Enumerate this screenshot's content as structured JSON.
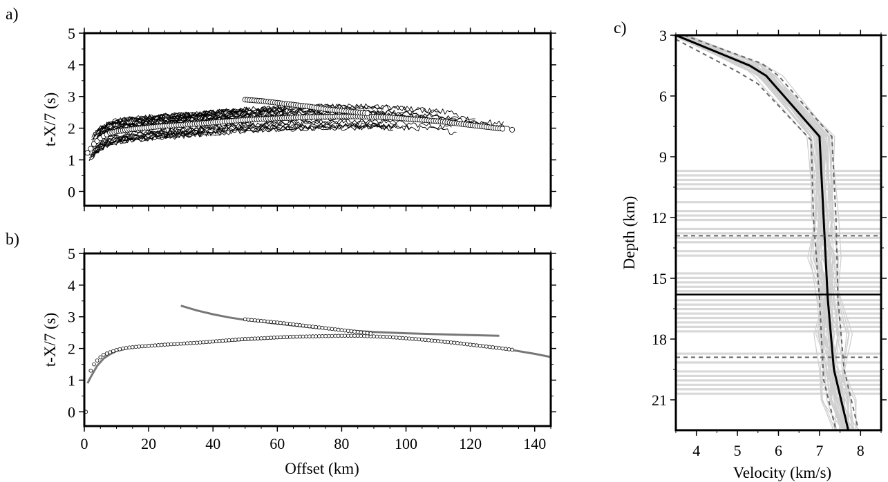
{
  "chart_data": [
    {
      "panel": "a)",
      "type": "scatter",
      "title": "",
      "xlabel": "",
      "ylabel": "t-X/7 (s)",
      "xlim": [
        0,
        145
      ],
      "ylim": [
        -0.45,
        5
      ],
      "yticks": [
        "0",
        "1",
        "2",
        "3",
        "4",
        "5"
      ],
      "series": [
        {
          "role": "observed picks (white circles)",
          "points": [
            [
              1,
              1.22
            ],
            [
              2,
              1.35
            ],
            [
              3,
              1.5
            ],
            [
              4,
              1.6
            ],
            [
              5,
              1.68
            ],
            [
              6,
              1.75
            ],
            [
              7,
              1.8
            ],
            [
              8,
              1.85
            ],
            [
              10,
              1.9
            ],
            [
              12,
              1.93
            ],
            [
              14,
              1.96
            ],
            [
              16,
              1.98
            ],
            [
              18,
              2.0
            ],
            [
              20,
              2.02
            ],
            [
              25,
              2.07
            ],
            [
              30,
              2.1
            ],
            [
              35,
              2.14
            ],
            [
              40,
              2.18
            ],
            [
              45,
              2.22
            ],
            [
              50,
              2.26
            ],
            [
              55,
              2.29
            ],
            [
              60,
              2.31
            ],
            [
              65,
              2.33
            ],
            [
              70,
              2.35
            ],
            [
              75,
              2.36
            ],
            [
              80,
              2.37
            ],
            [
              85,
              2.37
            ],
            [
              90,
              2.36
            ],
            [
              95,
              2.34
            ],
            [
              100,
              2.3
            ],
            [
              105,
              2.26
            ],
            [
              110,
              2.22
            ],
            [
              115,
              2.16
            ],
            [
              120,
              2.1
            ],
            [
              125,
              2.04
            ],
            [
              130,
              1.98
            ],
            [
              133,
              1.95
            ],
            [
              50,
              2.9
            ],
            [
              55,
              2.86
            ],
            [
              60,
              2.8
            ],
            [
              65,
              2.74
            ],
            [
              70,
              2.68
            ],
            [
              75,
              2.6
            ],
            [
              80,
              2.55
            ],
            [
              85,
              2.5
            ],
            [
              88,
              2.47
            ]
          ]
        }
      ],
      "noisy_traces": 45
    },
    {
      "panel": "b)",
      "type": "scatter",
      "title": "",
      "xlabel": "Offset (km)",
      "ylabel": "t-X/7 (s)",
      "xlim": [
        0,
        145
      ],
      "ylim": [
        -0.45,
        5
      ],
      "xticks": [
        "0",
        "20",
        "40",
        "60",
        "80",
        "100",
        "120",
        "140"
      ],
      "yticks": [
        "0",
        "1",
        "2",
        "3",
        "4",
        "5"
      ],
      "series": [
        {
          "role": "picks (black circles)",
          "points": [
            [
              0.5,
              0
            ],
            [
              2,
              1.3
            ],
            [
              3,
              1.5
            ],
            [
              4,
              1.62
            ],
            [
              5,
              1.72
            ],
            [
              6,
              1.8
            ],
            [
              8,
              1.88
            ],
            [
              10,
              1.95
            ],
            [
              12,
              2.0
            ],
            [
              14,
              2.03
            ],
            [
              16,
              2.05
            ],
            [
              18,
              2.07
            ],
            [
              20,
              2.08
            ],
            [
              25,
              2.12
            ],
            [
              30,
              2.15
            ],
            [
              35,
              2.18
            ],
            [
              40,
              2.22
            ],
            [
              45,
              2.26
            ],
            [
              50,
              2.3
            ],
            [
              55,
              2.32
            ],
            [
              60,
              2.35
            ],
            [
              65,
              2.37
            ],
            [
              70,
              2.38
            ],
            [
              75,
              2.39
            ],
            [
              80,
              2.4
            ],
            [
              85,
              2.4
            ],
            [
              90,
              2.38
            ],
            [
              95,
              2.36
            ],
            [
              100,
              2.32
            ],
            [
              105,
              2.28
            ],
            [
              110,
              2.23
            ],
            [
              115,
              2.18
            ],
            [
              120,
              2.12
            ],
            [
              125,
              2.06
            ],
            [
              130,
              2.0
            ],
            [
              133,
              1.96
            ],
            [
              50,
              2.92
            ],
            [
              55,
              2.87
            ],
            [
              60,
              2.82
            ],
            [
              65,
              2.76
            ],
            [
              70,
              2.7
            ],
            [
              75,
              2.64
            ],
            [
              80,
              2.58
            ],
            [
              85,
              2.52
            ],
            [
              89,
              2.47
            ]
          ]
        },
        {
          "role": "calculated travel time (gray curve, lower)",
          "points": [
            [
              1,
              0.9
            ],
            [
              2,
              1.1
            ],
            [
              4,
              1.45
            ],
            [
              6,
              1.68
            ],
            [
              8,
              1.82
            ],
            [
              10,
              1.92
            ],
            [
              14,
              2.02
            ],
            [
              20,
              2.08
            ],
            [
              30,
              2.14
            ],
            [
              40,
              2.2
            ],
            [
              50,
              2.27
            ],
            [
              60,
              2.33
            ],
            [
              70,
              2.37
            ],
            [
              80,
              2.4
            ],
            [
              90,
              2.38
            ],
            [
              100,
              2.33
            ],
            [
              110,
              2.25
            ],
            [
              120,
              2.14
            ],
            [
              130,
              2.0
            ],
            [
              140,
              1.83
            ],
            [
              145,
              1.73
            ]
          ]
        },
        {
          "role": "calculated travel time (gray curve, upper)",
          "points": [
            [
              30,
              3.35
            ],
            [
              35,
              3.2
            ],
            [
              40,
              3.08
            ],
            [
              45,
              2.98
            ],
            [
              50,
              2.9
            ],
            [
              60,
              2.78
            ],
            [
              70,
              2.67
            ],
            [
              80,
              2.58
            ],
            [
              90,
              2.52
            ],
            [
              100,
              2.48
            ],
            [
              110,
              2.45
            ],
            [
              120,
              2.42
            ],
            [
              129,
              2.4
            ]
          ]
        }
      ]
    },
    {
      "panel": "c)",
      "type": "line",
      "title": "",
      "xlabel": "Velocity (km/s)",
      "ylabel": "Depth (km)",
      "xlim": [
        3.5,
        8.5
      ],
      "ylim": [
        22.5,
        3
      ],
      "y_reversed": true,
      "xticks": [
        "4",
        "5",
        "6",
        "7",
        "8"
      ],
      "yticks": [
        "3",
        "6",
        "9",
        "12",
        "15",
        "18",
        "21"
      ],
      "series": [
        {
          "role": "best-fit velocity profile (black)",
          "points": [
            [
              3.5,
              3
            ],
            [
              5.3,
              4.5
            ],
            [
              5.7,
              5.0
            ],
            [
              7.0,
              8.0
            ],
            [
              7.1,
              12.0
            ],
            [
              7.2,
              16.0
            ],
            [
              7.35,
              19.5
            ],
            [
              7.7,
              22.5
            ]
          ]
        },
        {
          "role": "lower bound (dashed gray)",
          "points": [
            [
              3.5,
              3.2
            ],
            [
              5.0,
              4.8
            ],
            [
              5.5,
              5.4
            ],
            [
              6.8,
              8.2
            ],
            [
              6.85,
              12.0
            ],
            [
              7.0,
              16.0
            ],
            [
              7.1,
              20.0
            ],
            [
              7.4,
              22.5
            ]
          ]
        },
        {
          "role": "upper bound (dashed gray)",
          "points": [
            [
              3.7,
              3
            ],
            [
              5.6,
              4.4
            ],
            [
              6.0,
              5.0
            ],
            [
              7.3,
              8.0
            ],
            [
              7.4,
              12.0
            ],
            [
              7.45,
              16.0
            ],
            [
              7.6,
              19.5
            ],
            [
              7.95,
              22.5
            ]
          ]
        }
      ],
      "reference_lines": [
        {
          "role": "Moho depth (solid black)",
          "depth": 15.8
        },
        {
          "role": "Moho bound (dashed)",
          "depth": 12.9
        },
        {
          "role": "Moho bound (dashed)",
          "depth": 18.9
        }
      ],
      "ensemble_moho_depth_range": [
        9.7,
        21.0
      ]
    }
  ]
}
